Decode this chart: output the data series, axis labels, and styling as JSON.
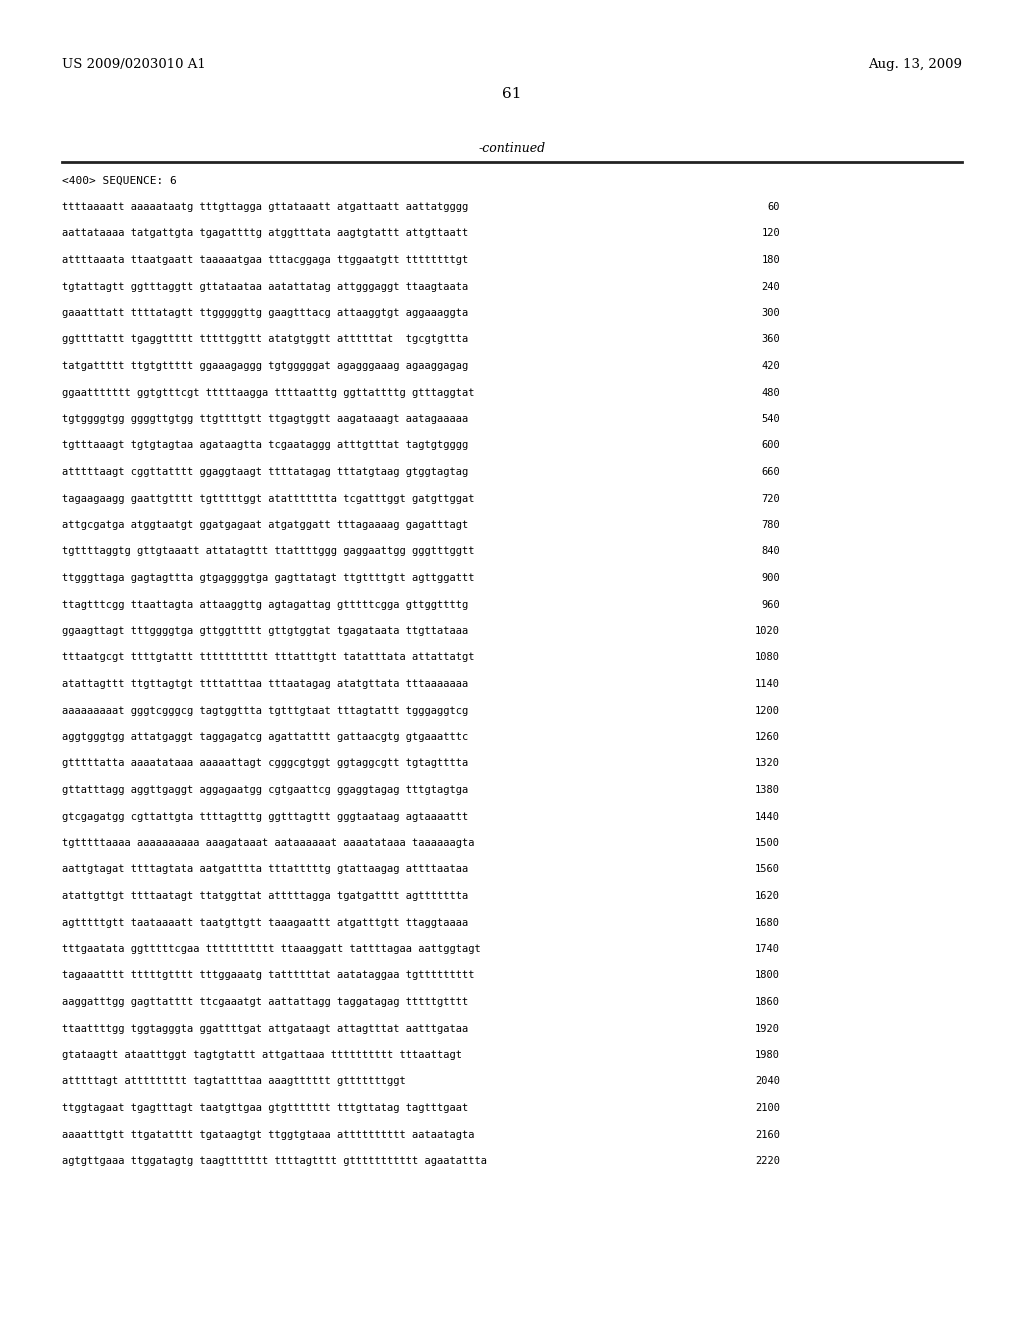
{
  "header_left": "US 2009/0203010 A1",
  "header_right": "Aug. 13, 2009",
  "page_number": "61",
  "continued_text": "-continued",
  "sequence_label": "<400> SEQUENCE: 6",
  "background_color": "#ffffff",
  "text_color": "#000000",
  "sequence_lines": [
    [
      "ttttaaaatt aaaaataatg tttgttagga gttataaatt atgattaatt aattatgggg",
      "60"
    ],
    [
      "aattataaaa tatgattgta tgagattttg atggtttata aagtgtattt attgttaatt",
      "120"
    ],
    [
      "attttaaata ttaatgaatt taaaaatgaa tttacggaga ttggaatgtt ttttttttgt",
      "180"
    ],
    [
      "tgtattagtt ggtttaggtt gttataataa aatattatag attgggaggt ttaagtaata",
      "240"
    ],
    [
      "gaaatttatt ttttatagtt ttgggggttg gaagtttacg attaaggtgt aggaaaggta",
      "300"
    ],
    [
      "ggttttattt tgaggttttt tttttggttt atatgtggtt attttttat  tgcgtgttta",
      "360"
    ],
    [
      "tatgattttt ttgtgttttt ggaaagaggg tgtgggggat agagggaaag agaaggagag",
      "420"
    ],
    [
      "ggaattttttt ggtgtttcgt tttttaagga ttttaatttg ggttattttg gtttaggtat",
      "480"
    ],
    [
      "tgtggggtgg ggggttgtgg ttgttttgtt ttgagtggtt aagataaagt aatagaaaaa",
      "540"
    ],
    [
      "tgtttaaagt tgtgtagtaa agataagtta tcgaataggg atttgtttat tagtgtgggg",
      "600"
    ],
    [
      "atttttaagt cggttatttt ggaggtaagt ttttatagag tttatgtaag gtggtagtag",
      "660"
    ],
    [
      "tagaagaagg gaattgtttt tgtttttggt atattttttta tcgatttggt gatgttggat",
      "720"
    ],
    [
      "attgcgatga atggtaatgt ggatgagaat atgatggatt tttagaaaag gagatttagt",
      "780"
    ],
    [
      "tgttttaggtg gttgtaaatt attatagttt ttattttggg gaggaattgg gggtttggtt",
      "840"
    ],
    [
      "ttgggttaga gagtagttta gtgaggggtga gagttatagt ttgttttgtt agttggattt",
      "900"
    ],
    [
      "ttagtttcgg ttaattagta attaaggttg agtagattag gtttttcgga gttggttttg",
      "960"
    ],
    [
      "ggaagttagt tttggggtga gttggttttt gttgtggtat tgagataata ttgttataaa",
      "1020"
    ],
    [
      "tttaatgcgt ttttgtattt ttttttttttt tttatttgtt tatatttata attattatgt",
      "1080"
    ],
    [
      "atattagttt ttgttagtgt ttttatttaa tttaatagag atatgttata tttaaaaaaa",
      "1140"
    ],
    [
      "aaaaaaaaat gggtcgggcg tagtggttta tgtttgtaat tttagtattt tgggaggtcg",
      "1200"
    ],
    [
      "aggtgggtgg attatgaggt taggagatcg agattatttt gattaacgtg gtgaaatttc",
      "1260"
    ],
    [
      "gtttttatta aaaatataaa aaaaattagt cgggcgtggt ggtaggcgtt tgtagtttta",
      "1320"
    ],
    [
      "gttatttagg aggttgaggt aggagaatgg cgtgaattcg ggaggtagag tttgtagtga",
      "1380"
    ],
    [
      "gtcgagatgg cgttattgta ttttagtttg ggtttagttt gggtaataag agtaaaattt",
      "1440"
    ],
    [
      "tgtttttaaaa aaaaaaaaaa aaagataaat aataaaaaat aaaatataaa taaaaaagta",
      "1500"
    ],
    [
      "aattgtagat ttttagtata aatgatttta tttatttttg gtattaagag attttaataa",
      "1560"
    ],
    [
      "atattgttgt ttttaatagt ttatggttat atttttagga tgatgatttt agttttttta",
      "1620"
    ],
    [
      "agtttttgtt taataaaatt taatgttgtt taaagaattt atgatttgtt ttaggtaaaa",
      "1680"
    ],
    [
      "tttgaatata ggtttttcgaa ttttttttttt ttaaaggatt tattttagaa aattggtagt",
      "1740"
    ],
    [
      "tagaaatttt tttttgtttt tttggaaatg tattttttat aatataggaa tgttttttttt",
      "1800"
    ],
    [
      "aaggatttgg gagttatttt ttcgaaatgt aattattagg taggatagag tttttgtttt",
      "1860"
    ],
    [
      "ttaattttgg tggtagggta ggattttgat attgataagt attagtttat aatttgataa",
      "1920"
    ],
    [
      "gtataagtt ataatttggt tagtgtattt attgattaaa tttttttttt tttaattagt",
      "1980"
    ],
    [
      "atttttagt attttttttt tagtattttaa aaagtttttt gtttttttggt",
      "2040"
    ],
    [
      "ttggtagaat tgagtttagt taatgttgaa gtgttttttt tttgttatag tagtttgaat",
      "2100"
    ],
    [
      "aaaatttgtt ttgatatttt tgataagtgt ttggtgtaaa atttttttttt aataatagta",
      "2160"
    ],
    [
      "agtgttgaaa ttggatagtg taagttttttt ttttagtttt gttttttttttt agaatattta",
      "2220"
    ]
  ]
}
